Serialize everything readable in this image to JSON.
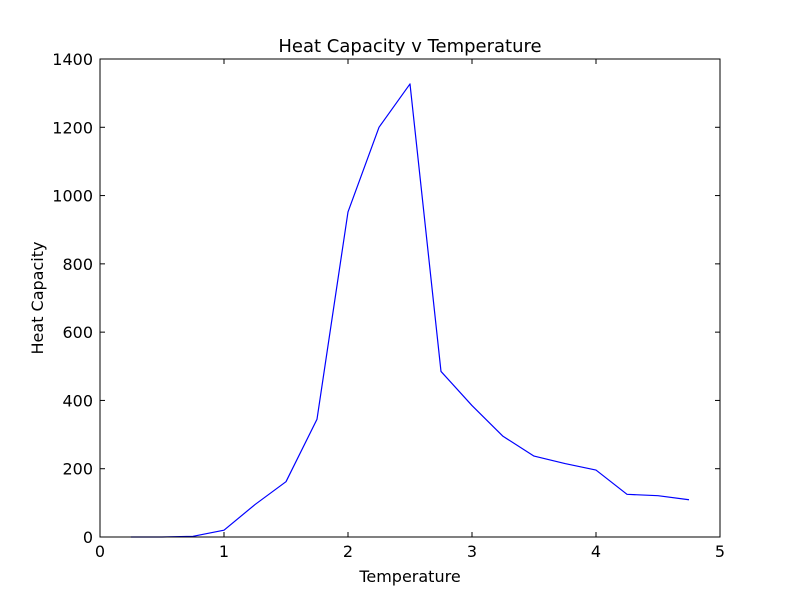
{
  "chart_data": {
    "type": "line",
    "title": "Heat Capacity v Temperature",
    "xlabel": "Temperature",
    "ylabel": "Heat Capacity",
    "xlim": [
      0,
      5
    ],
    "ylim": [
      0,
      1400
    ],
    "xticks": [
      "0",
      "1",
      "2",
      "3",
      "4",
      "5"
    ],
    "yticks": [
      "0",
      "200",
      "400",
      "600",
      "800",
      "1000",
      "1200",
      "1400"
    ],
    "grid": false,
    "series": [
      {
        "color": "#0000ff",
        "x": [
          0.25,
          0.5,
          0.75,
          1.0,
          1.25,
          1.5,
          1.75,
          2.0,
          2.25,
          2.5,
          2.75,
          3.0,
          3.25,
          3.5,
          3.75,
          4.0,
          4.25,
          4.5,
          4.75
        ],
        "y": [
          0,
          0,
          2,
          20,
          95,
          162,
          345,
          952,
          1200,
          1327,
          485,
          385,
          295,
          237,
          215,
          196,
          125,
          121,
          109
        ]
      }
    ]
  }
}
